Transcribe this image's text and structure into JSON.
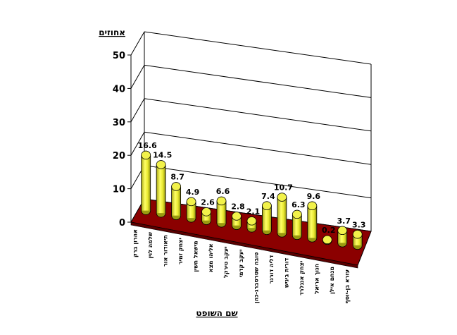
{
  "chart_data": {
    "type": "bar",
    "style": "3d-cylinder",
    "title": "",
    "ylabel": "אחוזים",
    "xlabel": "שם השופט",
    "ylim": [
      0,
      50
    ],
    "yticks": [
      0,
      10,
      20,
      30,
      40,
      50
    ],
    "categories": [
      "אהרון ברק",
      "שלמה לוין",
      "תיאודור אור",
      "יצחק זמיר",
      "מישאל חשין",
      "אליהו מצא",
      "יעקב טירקל",
      "יעקב קדמי",
      "טובה שטרסברג-כהן",
      "דליה דורנר",
      "דורית ביניש",
      "יצחק אנגלרד",
      "חנוך אריאל",
      "מנחם אילן",
      "עזרא בן-יוסף"
    ],
    "values": [
      16.6,
      14.5,
      8.7,
      4.9,
      2.6,
      6.6,
      2.8,
      2.1,
      7.4,
      10.7,
      6.3,
      9.6,
      0.2,
      3.7,
      3.3
    ],
    "data_labels": [
      "16.6",
      "14.5",
      "8.7",
      "4.9",
      "2.6",
      "6.6",
      "2.8",
      "2.1",
      "7.4",
      "10.7",
      "6.3",
      "9.6",
      "0.2",
      "3.7",
      "3.3"
    ],
    "colors": {
      "bar": "#e8e830",
      "bar_dark": "#9a9a10",
      "floor": "#8b0000",
      "grid": "#000000"
    },
    "grid": true,
    "legend": "none"
  }
}
